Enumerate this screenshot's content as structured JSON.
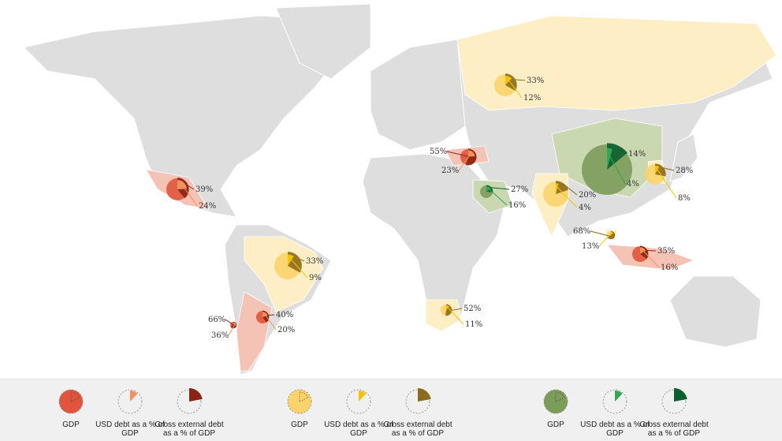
{
  "colors": {
    "land": "#dedede",
    "border": "#ffffff",
    "red": {
      "circle": "#e0553c",
      "usd": "#f0925e",
      "ext": "#8b2314",
      "land": "#f4c3b5"
    },
    "yellow": {
      "circle": "#fbd36a",
      "usd": "#f5c400",
      "ext": "#8e6b1c",
      "land": "#fdeec6"
    },
    "green": {
      "circle": "#7c9c5a",
      "usd": "#2ea852",
      "ext": "#0b5e2e",
      "land": "#cad8b2"
    }
  },
  "pies": [
    {
      "group": "red",
      "ext_label": "39%",
      "usd_label": "24%",
      "ext": 39,
      "usd": 24
    },
    {
      "group": "yellow",
      "ext_label": "33%",
      "usd_label": "9%",
      "ext": 33,
      "usd": 9
    },
    {
      "group": "red",
      "ext_label": "40%",
      "usd_label": "20%",
      "ext": 40,
      "usd": 20
    },
    {
      "group": "red",
      "ext_label": "66%",
      "usd_label": "36%",
      "ext": 66,
      "usd": 36
    },
    {
      "group": "red",
      "ext_label": "55%",
      "usd_label": "23%",
      "ext": 55,
      "usd": 23
    },
    {
      "group": "green",
      "ext_label": "27%",
      "usd_label": "16%",
      "ext": 27,
      "usd": 16
    },
    {
      "group": "yellow",
      "ext_label": "33%",
      "usd_label": "12%",
      "ext": 33,
      "usd": 12
    },
    {
      "group": "green",
      "ext_label": "14%",
      "usd_label": "4%",
      "ext": 14,
      "usd": 4
    },
    {
      "group": "yellow",
      "ext_label": "28%",
      "usd_label": "8%",
      "ext": 28,
      "usd": 8
    },
    {
      "group": "yellow",
      "ext_label": "20%",
      "usd_label": "4%",
      "ext": 20,
      "usd": 4
    },
    {
      "group": "yellow",
      "ext_label": "68%",
      "usd_label": "13%",
      "ext": 68,
      "usd": 13
    },
    {
      "group": "red",
      "ext_label": "35%",
      "usd_label": "16%",
      "ext": 35,
      "usd": 16
    },
    {
      "group": "yellow",
      "ext_label": "52%",
      "usd_label": "11%",
      "ext": 52,
      "usd": 11
    }
  ],
  "legend": {
    "groups": [
      {
        "group": "red",
        "gdp": "GDP",
        "usd": "USD debt as a % of GDP",
        "ext": "Gross external debt as a % of GDP"
      },
      {
        "group": "yellow",
        "gdp": "GDP",
        "usd": "USD debt as a % of GDP",
        "ext": "Gross external debt as a % of GDP"
      },
      {
        "group": "green",
        "gdp": "GDP",
        "usd": "USD debt as a % of GDP",
        "ext": "Gross external debt as a % of GDP"
      }
    ]
  }
}
